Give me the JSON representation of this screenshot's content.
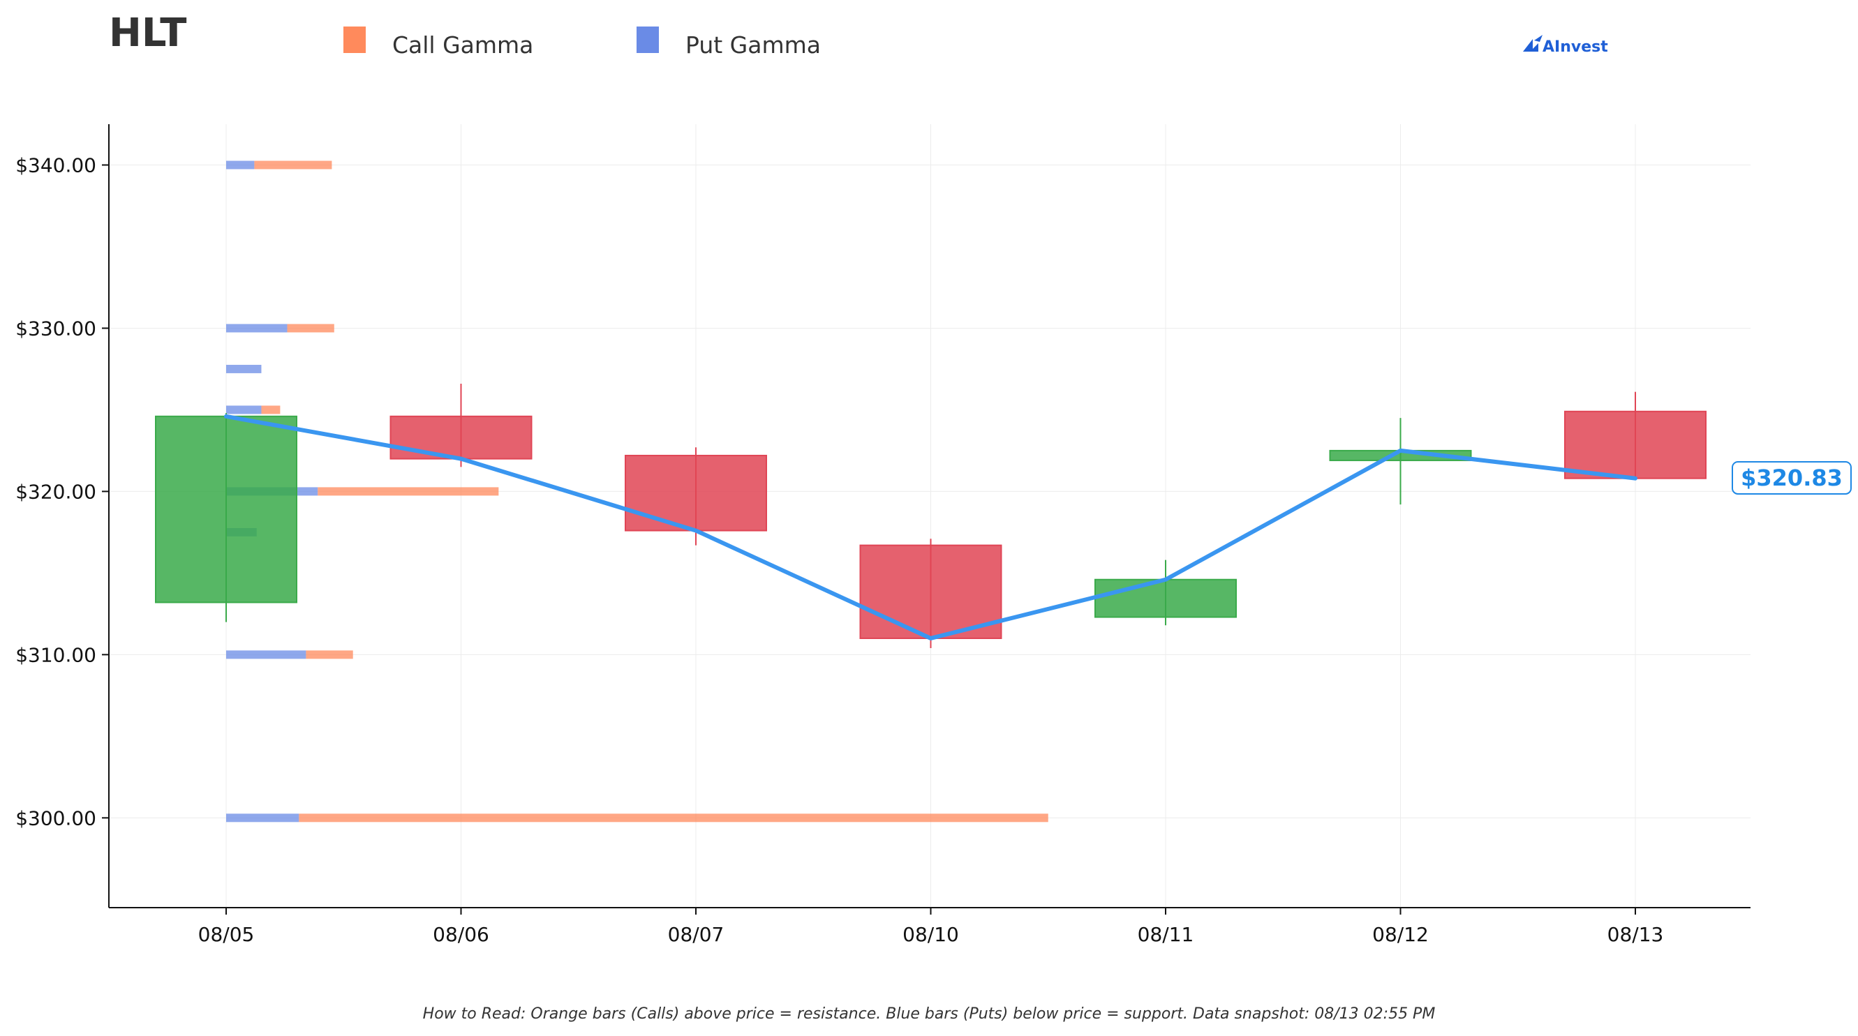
{
  "header": {
    "ticker": "HLT",
    "brand": "AInvest",
    "brand_color": "#1f5fd6"
  },
  "legend": [
    {
      "label": "Call Gamma",
      "color": "#ff8a5c"
    },
    {
      "label": "Put Gamma",
      "color": "#6a8be6"
    }
  ],
  "footer": {
    "note": "How to Read: Orange bars (Calls) above price = resistance. Blue bars (Puts) below price = support. Data snapshot: 08/13 02:55 PM"
  },
  "current_price": {
    "label": "$320.83",
    "value": 320.83,
    "color": "#1e88e5"
  },
  "chart_data": {
    "type": "candlestick",
    "categories": [
      "08/05",
      "08/06",
      "08/07",
      "08/10",
      "08/11",
      "08/12",
      "08/13"
    ],
    "ylim": [
      294.5,
      342.5
    ],
    "y_ticks": [
      300,
      310,
      320,
      330,
      340
    ],
    "y_tick_labels": [
      "$300.00",
      "$310.00",
      "$320.00",
      "$330.00",
      "$340.00"
    ],
    "grid": true,
    "colors": {
      "up": "#3aaa4a",
      "down": "#e04555",
      "line": "#3a96f0"
    },
    "candles": [
      {
        "date": "08/05",
        "open": 313.2,
        "high": 324.8,
        "low": 312.0,
        "close": 324.6
      },
      {
        "date": "08/06",
        "open": 324.6,
        "high": 326.6,
        "low": 321.5,
        "close": 322.0
      },
      {
        "date": "08/07",
        "open": 322.2,
        "high": 322.7,
        "low": 316.7,
        "close": 317.6
      },
      {
        "date": "08/10",
        "open": 316.7,
        "high": 317.1,
        "low": 310.4,
        "close": 311.0
      },
      {
        "date": "08/11",
        "open": 312.3,
        "high": 315.8,
        "low": 311.8,
        "close": 314.6
      },
      {
        "date": "08/12",
        "open": 321.9,
        "high": 324.5,
        "low": 319.2,
        "close": 322.5
      },
      {
        "date": "08/13",
        "open": 324.9,
        "high": 326.1,
        "low": 320.7,
        "close": 320.8
      }
    ],
    "close_line": {
      "x": [
        "08/05",
        "08/06",
        "08/07",
        "08/10",
        "08/11",
        "08/12",
        "08/13"
      ],
      "y": [
        324.6,
        322.0,
        317.6,
        311.0,
        314.6,
        322.5,
        320.8
      ]
    },
    "gamma": {
      "unit": "category widths from first date",
      "levels": [
        {
          "strike": 340.0,
          "put": 0.12,
          "call": 0.33
        },
        {
          "strike": 330.0,
          "put": 0.26,
          "call": 0.2
        },
        {
          "strike": 327.5,
          "put": 0.15,
          "call": 0
        },
        {
          "strike": 325.0,
          "put": 0.15,
          "call": 0.08
        },
        {
          "strike": 320.0,
          "put": 0.39,
          "call": 0.77
        },
        {
          "strike": 317.5,
          "put": 0.13,
          "call": 0
        },
        {
          "strike": 310.0,
          "put": 0.34,
          "call": 0.2
        },
        {
          "strike": 300.0,
          "put": 0.31,
          "call": 3.19
        }
      ]
    }
  }
}
